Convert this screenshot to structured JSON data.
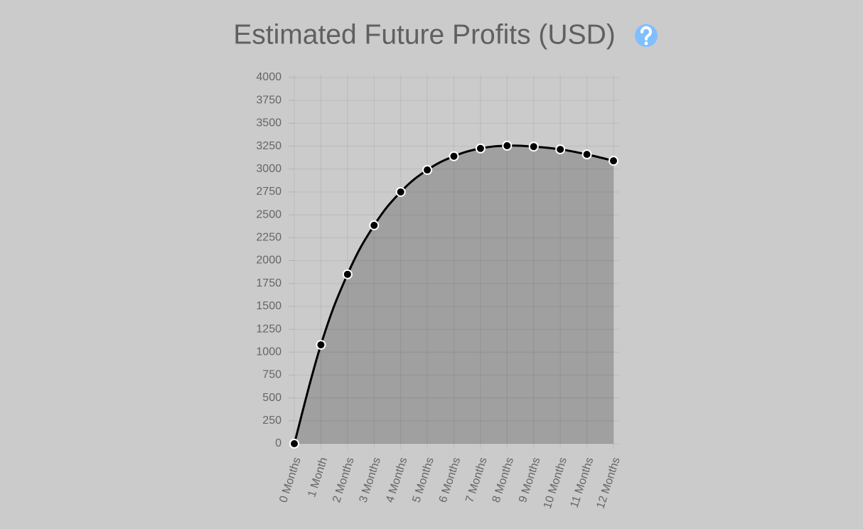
{
  "chart_data": {
    "type": "line",
    "title": "Estimated Future Profits (USD)",
    "categories": [
      "0 Months",
      "1 Month",
      "2 Months",
      "3 Months",
      "4 Months",
      "5 Months",
      "6 Months",
      "7 Months",
      "8 Months",
      "9 Months",
      "10 Months",
      "11 Months",
      "12 Months"
    ],
    "values": [
      0,
      1080,
      1850,
      2385,
      2750,
      2990,
      3140,
      3225,
      3255,
      3245,
      3215,
      3160,
      3090
    ],
    "color": "#000000",
    "area_color": "#a0a0a0",
    "ylim": [
      0,
      4000
    ],
    "yticks": [
      0,
      250,
      500,
      750,
      1000,
      1250,
      1500,
      1750,
      2000,
      2250,
      2500,
      2750,
      3000,
      3250,
      3500,
      3750,
      4000
    ],
    "grid": true
  }
}
